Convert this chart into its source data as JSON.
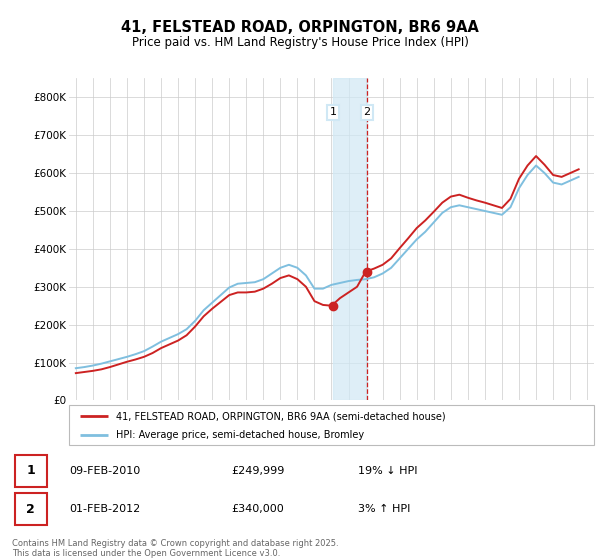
{
  "title_line1": "41, FELSTEAD ROAD, ORPINGTON, BR6 9AA",
  "title_line2": "Price paid vs. HM Land Registry's House Price Index (HPI)",
  "ylim": [
    0,
    850000
  ],
  "yticks": [
    0,
    100000,
    200000,
    300000,
    400000,
    500000,
    600000,
    700000,
    800000
  ],
  "ytick_labels": [
    "£0",
    "£100K",
    "£200K",
    "£300K",
    "£400K",
    "£500K",
    "£600K",
    "£700K",
    "£800K"
  ],
  "hpi_color": "#7fbfdf",
  "price_color": "#cc2222",
  "highlight_color": "#d0e8f5",
  "highlight_alpha": 0.7,
  "transaction1_date": "09-FEB-2010",
  "transaction1_price": 249999,
  "transaction1_hpi": "19% ↓ HPI",
  "transaction1_year": 2010.08,
  "transaction2_date": "01-FEB-2012",
  "transaction2_price": 340000,
  "transaction2_hpi": "3% ↑ HPI",
  "transaction2_year": 2012.08,
  "legend_label1": "41, FELSTEAD ROAD, ORPINGTON, BR6 9AA (semi-detached house)",
  "legend_label2": "HPI: Average price, semi-detached house, Bromley",
  "footer": "Contains HM Land Registry data © Crown copyright and database right 2025.\nThis data is licensed under the Open Government Licence v3.0.",
  "hpi_data_x": [
    1995.0,
    1995.5,
    1996.0,
    1996.5,
    1997.0,
    1997.5,
    1998.0,
    1998.5,
    1999.0,
    1999.5,
    2000.0,
    2000.5,
    2001.0,
    2001.5,
    2002.0,
    2002.5,
    2003.0,
    2003.5,
    2004.0,
    2004.5,
    2005.0,
    2005.5,
    2006.0,
    2006.5,
    2007.0,
    2007.5,
    2008.0,
    2008.5,
    2009.0,
    2009.5,
    2010.0,
    2010.5,
    2011.0,
    2011.5,
    2012.0,
    2012.5,
    2013.0,
    2013.5,
    2014.0,
    2014.5,
    2015.0,
    2015.5,
    2016.0,
    2016.5,
    2017.0,
    2017.5,
    2018.0,
    2018.5,
    2019.0,
    2019.5,
    2020.0,
    2020.5,
    2021.0,
    2021.5,
    2022.0,
    2022.5,
    2023.0,
    2023.5,
    2024.0,
    2024.5
  ],
  "hpi_data_y": [
    85000,
    88000,
    92000,
    97000,
    103000,
    109000,
    115000,
    122000,
    130000,
    142000,
    155000,
    165000,
    175000,
    188000,
    210000,
    238000,
    258000,
    278000,
    298000,
    308000,
    310000,
    312000,
    320000,
    335000,
    350000,
    358000,
    350000,
    330000,
    295000,
    295000,
    305000,
    310000,
    315000,
    318000,
    320000,
    325000,
    335000,
    350000,
    375000,
    400000,
    425000,
    445000,
    470000,
    495000,
    510000,
    515000,
    510000,
    505000,
    500000,
    495000,
    490000,
    510000,
    560000,
    595000,
    620000,
    600000,
    575000,
    570000,
    580000,
    590000
  ],
  "price_data_x": [
    1995.0,
    1995.5,
    1996.0,
    1996.5,
    1997.0,
    1997.5,
    1998.0,
    1998.5,
    1999.0,
    1999.5,
    2000.0,
    2000.5,
    2001.0,
    2001.5,
    2002.0,
    2002.5,
    2003.0,
    2003.5,
    2004.0,
    2004.5,
    2005.0,
    2005.5,
    2006.0,
    2006.5,
    2007.0,
    2007.5,
    2008.0,
    2008.5,
    2009.0,
    2009.5,
    2010.0,
    2010.5,
    2011.0,
    2011.5,
    2012.0,
    2012.5,
    2013.0,
    2013.5,
    2014.0,
    2014.5,
    2015.0,
    2015.5,
    2016.0,
    2016.5,
    2017.0,
    2017.5,
    2018.0,
    2018.5,
    2019.0,
    2019.5,
    2020.0,
    2020.5,
    2021.0,
    2021.5,
    2022.0,
    2022.5,
    2023.0,
    2023.5,
    2024.0,
    2024.5
  ],
  "price_data_y": [
    72000,
    75000,
    78000,
    82000,
    88000,
    95000,
    102000,
    108000,
    115000,
    125000,
    138000,
    148000,
    158000,
    172000,
    195000,
    222000,
    242000,
    260000,
    278000,
    285000,
    285000,
    287000,
    295000,
    308000,
    323000,
    330000,
    320000,
    300000,
    262000,
    252000,
    250000,
    270000,
    285000,
    300000,
    340000,
    348000,
    358000,
    375000,
    402000,
    428000,
    455000,
    475000,
    498000,
    522000,
    538000,
    543000,
    535000,
    528000,
    522000,
    515000,
    508000,
    532000,
    585000,
    620000,
    645000,
    622000,
    595000,
    590000,
    600000,
    610000
  ]
}
